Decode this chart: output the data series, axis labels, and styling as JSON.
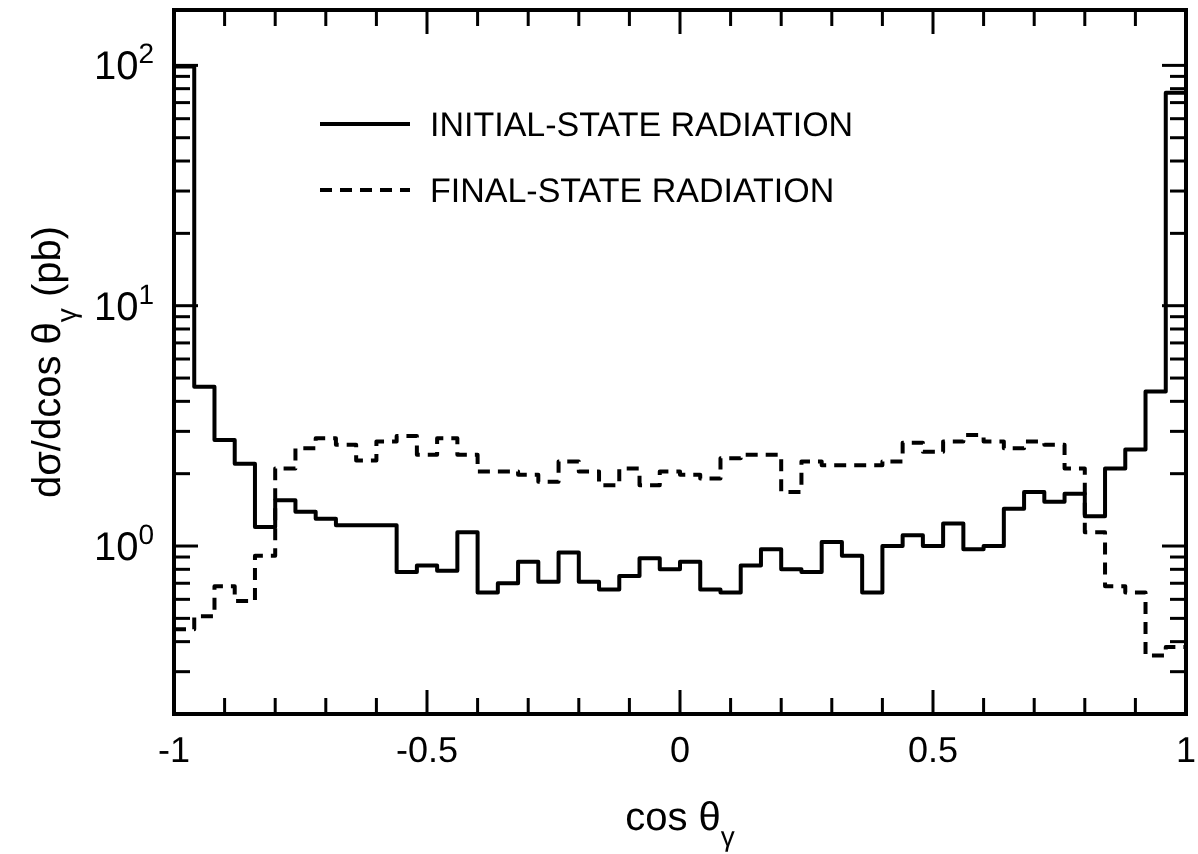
{
  "chart_data": {
    "type": "histogram",
    "xlabel": "cos θ$_{γ}$",
    "ylabel": "dσ/dcos θ$_{γ}$ (pb)",
    "log": "y",
    "legend": "top",
    "xlim": [
      -1,
      1
    ],
    "ylim": [
      0.2,
      170
    ],
    "xticks": [
      -1,
      {
        "value": -0.9,
        "label": null
      },
      {
        "value": -0.8,
        "label": null
      },
      {
        "value": -0.7,
        "label": null
      },
      {
        "value": -0.6,
        "label": null
      },
      -0.5,
      {
        "value": -0.4,
        "label": null
      },
      {
        "value": -0.3,
        "label": null
      },
      {
        "value": -0.2,
        "label": null
      },
      {
        "value": -0.1,
        "label": null
      },
      0,
      {
        "value": 0.1,
        "label": null
      },
      {
        "value": 0.2,
        "label": null
      },
      {
        "value": 0.3,
        "label": null
      },
      {
        "value": 0.4,
        "label": null
      },
      0.5,
      {
        "value": 0.6,
        "label": null
      },
      {
        "value": 0.7,
        "label": null
      },
      {
        "value": 0.8,
        "label": null
      },
      {
        "value": 0.9,
        "label": null
      },
      1
    ],
    "yticks": [
      {
        "value": 0.2,
        "label": null
      },
      {
        "value": 0.3,
        "label": null
      },
      {
        "value": 0.4,
        "label": null
      },
      {
        "value": 0.5,
        "label": null
      },
      {
        "value": 0.6,
        "label": null
      },
      {
        "value": 0.7,
        "label": null
      },
      {
        "value": 0.8,
        "label": null
      },
      {
        "value": 0.9,
        "label": null
      },
      {
        "value": 1,
        "label": "10$^{0}$"
      },
      {
        "value": 2,
        "label": null
      },
      {
        "value": 3,
        "label": null
      },
      {
        "value": 4,
        "label": null
      },
      {
        "value": 5,
        "label": null
      },
      {
        "value": 6,
        "label": null
      },
      {
        "value": 7,
        "label": null
      },
      {
        "value": 8,
        "label": null
      },
      {
        "value": 9,
        "label": null
      },
      {
        "value": 10,
        "label": "10$^{1}$"
      },
      {
        "value": 20,
        "label": null
      },
      {
        "value": 30,
        "label": null
      },
      {
        "value": 40,
        "label": null
      },
      {
        "value": 50,
        "label": null
      },
      {
        "value": 60,
        "label": null
      },
      {
        "value": 70,
        "label": null
      },
      {
        "value": 80,
        "label": null
      },
      {
        "value": 90,
        "label": null
      },
      {
        "value": 100,
        "label": "10$^{2}$"
      }
    ],
    "bins": [
      -1,
      -0.96,
      -0.92,
      -0.88,
      -0.84,
      -0.8,
      -0.76,
      -0.72,
      -0.68,
      -0.64,
      -0.6,
      -0.56,
      -0.52,
      -0.48,
      -0.44,
      -0.4,
      -0.36,
      -0.32,
      -0.28,
      -0.24,
      -0.2,
      -0.16,
      -0.12,
      -0.08,
      -0.04,
      0,
      0.04,
      0.08,
      0.12,
      0.16,
      0.2,
      0.24,
      0.28,
      0.32,
      0.36,
      0.4,
      0.44,
      0.48,
      0.52,
      0.56,
      0.6,
      0.64,
      0.68,
      0.72,
      0.76,
      0.8,
      0.84,
      0.88,
      0.92,
      0.96,
      1
    ],
    "series": [
      {
        "name": "INITIAL-STATE RADIATION",
        "color": "#000000",
        "line_style": "solid",
        "values": [
          99,
          4.6,
          2.76,
          2.2,
          1.2,
          1.55,
          1.39,
          1.3,
          1.22,
          1.22,
          1.22,
          0.78,
          0.83,
          0.79,
          1.14,
          0.64,
          0.7,
          0.86,
          0.71,
          0.94,
          0.71,
          0.66,
          0.75,
          0.89,
          0.8,
          0.86,
          0.66,
          0.64,
          0.83,
          0.97,
          0.8,
          0.78,
          1.04,
          0.91,
          0.64,
          1.0,
          1.11,
          1.0,
          1.24,
          0.97,
          1.0,
          1.43,
          1.68,
          1.53,
          1.65,
          1.33,
          2.1,
          2.52,
          4.4,
          77
        ]
      },
      {
        "name": "FINAL-STATE RADIATION",
        "color": "#000000",
        "line_style": "dashed",
        "values": [
          0.45,
          0.51,
          0.68,
          0.59,
          0.91,
          2.1,
          2.55,
          2.81,
          2.64,
          2.27,
          2.72,
          2.87,
          2.4,
          2.81,
          2.4,
          2.04,
          2.04,
          1.98,
          1.85,
          2.25,
          2.04,
          1.79,
          2.1,
          1.79,
          2.04,
          1.98,
          1.91,
          2.32,
          2.4,
          2.4,
          1.68,
          2.25,
          2.17,
          2.17,
          2.17,
          2.25,
          2.69,
          2.47,
          2.72,
          2.9,
          2.72,
          2.55,
          2.72,
          2.64,
          2.1,
          1.14,
          0.68,
          0.64,
          0.35,
          0.38
        ]
      }
    ]
  }
}
